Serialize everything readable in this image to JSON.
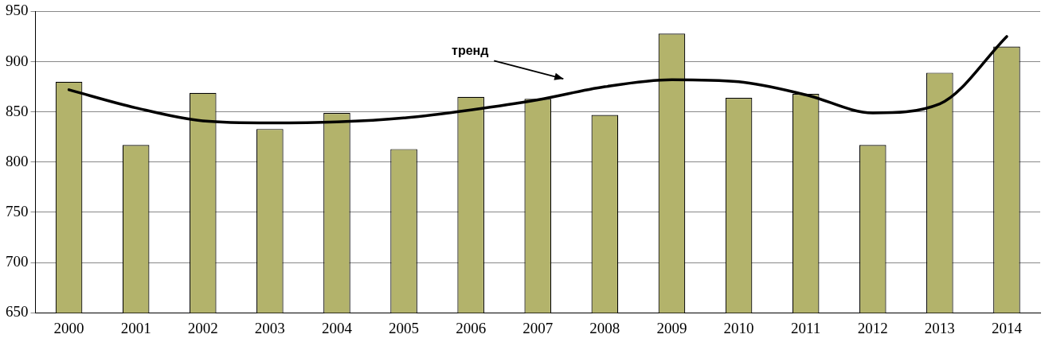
{
  "chart_data": {
    "type": "bar",
    "categories": [
      "2000",
      "2001",
      "2002",
      "2003",
      "2004",
      "2005",
      "2006",
      "2007",
      "2008",
      "2009",
      "2010",
      "2011",
      "2012",
      "2013",
      "2014"
    ],
    "series": [
      {
        "color": "#b3b36b",
        "values": [
          880,
          817,
          869,
          833,
          849,
          813,
          865,
          863,
          847,
          928,
          864,
          868,
          817,
          889,
          915
        ]
      },
      {
        "type": "line",
        "name": "тренд",
        "color": "#000000",
        "values": [
          872,
          854,
          841,
          839,
          840,
          844,
          852,
          862,
          875,
          882,
          880,
          867,
          849,
          858,
          925
        ]
      }
    ],
    "ylim": [
      650,
      950
    ],
    "yticks": [
      650,
      700,
      750,
      800,
      850,
      900,
      950
    ],
    "grid": "y",
    "legend": false,
    "marker": "none"
  }
}
